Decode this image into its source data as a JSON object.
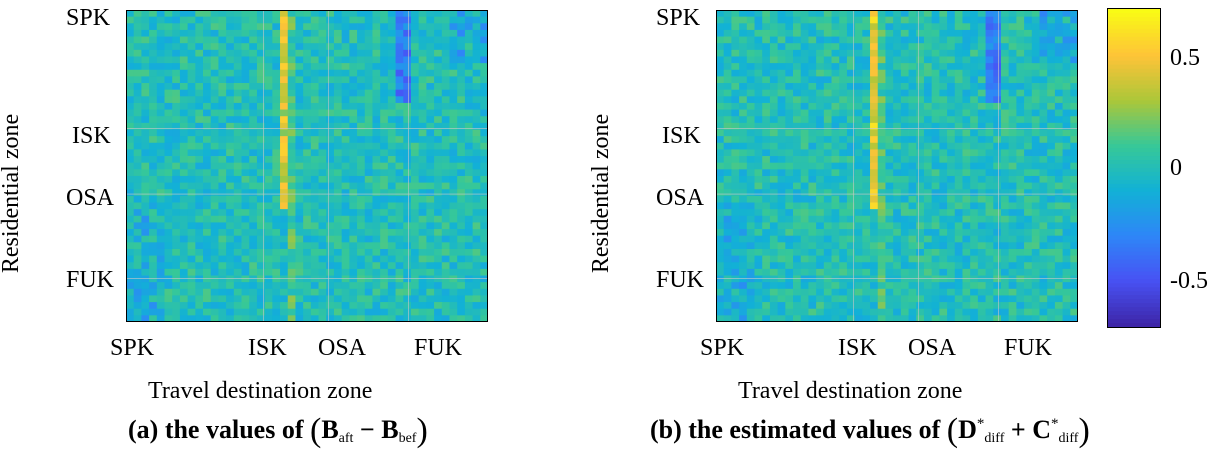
{
  "chart_data": [
    {
      "panel": "a",
      "type": "heatmap",
      "title": "",
      "xlabel": "Travel destination zone",
      "ylabel": "Residential zone",
      "x_ticks": [
        "SPK",
        "ISK",
        "OSA",
        "FUK"
      ],
      "y_ticks": [
        "SPK",
        "ISK",
        "OSA",
        "FUK"
      ],
      "grid": true,
      "colormap": "parula",
      "clim": [
        -0.7,
        0.7
      ],
      "rows": 47,
      "cols": 47,
      "caption": {
        "prefix": "(a)  the values of",
        "B1": "B",
        "sub1": "aft",
        "op": "−",
        "B2": "B",
        "sub2": "bef"
      }
    },
    {
      "panel": "b",
      "type": "heatmap",
      "title": "",
      "xlabel": "Travel destination zone",
      "ylabel": "Residential zone",
      "x_ticks": [
        "SPK",
        "ISK",
        "OSA",
        "FUK"
      ],
      "y_ticks": [
        "SPK",
        "ISK",
        "OSA",
        "FUK"
      ],
      "grid": true,
      "colormap": "parula",
      "clim": [
        -0.7,
        0.7
      ],
      "rows": 47,
      "cols": 47,
      "caption": {
        "prefix": "(b)  the estimated values of",
        "D": "D",
        "sup": "*",
        "sub1": "diff",
        "op": "+",
        "C": "C",
        "sub2": "diff"
      }
    }
  ],
  "colorbar": {
    "ticks": [
      "0.5",
      "0",
      "-0.5"
    ],
    "tick_values": [
      0.5,
      0,
      -0.5
    ],
    "range": [
      -0.7,
      0.7
    ]
  }
}
